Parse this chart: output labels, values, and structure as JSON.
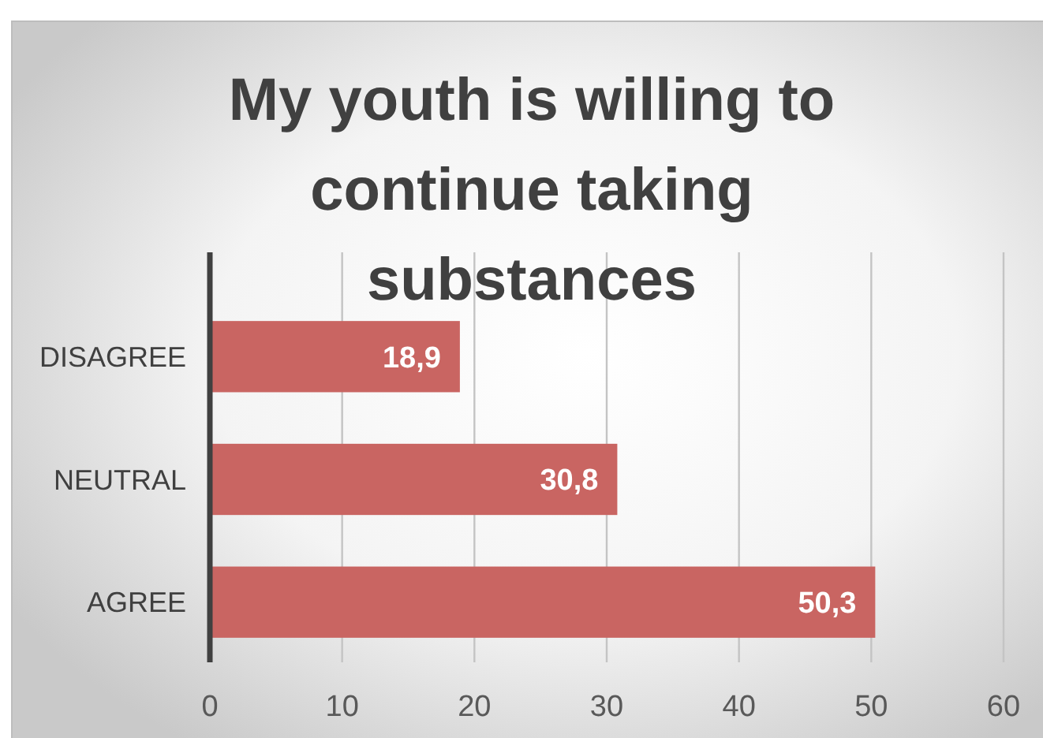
{
  "chart_data": {
    "type": "bar",
    "orientation": "horizontal",
    "title": "My youth is willing to continue taking substances",
    "categories": [
      "DISAGREE",
      "NEUTRAL",
      "AGREE"
    ],
    "values": [
      18.9,
      30.8,
      50.3
    ],
    "value_labels": [
      "18,9",
      "30,8",
      "50,3"
    ],
    "color": "#c96562",
    "xlim": [
      0,
      60
    ],
    "xticks": [
      0,
      10,
      20,
      30,
      40,
      50,
      60
    ],
    "grid": "x"
  }
}
